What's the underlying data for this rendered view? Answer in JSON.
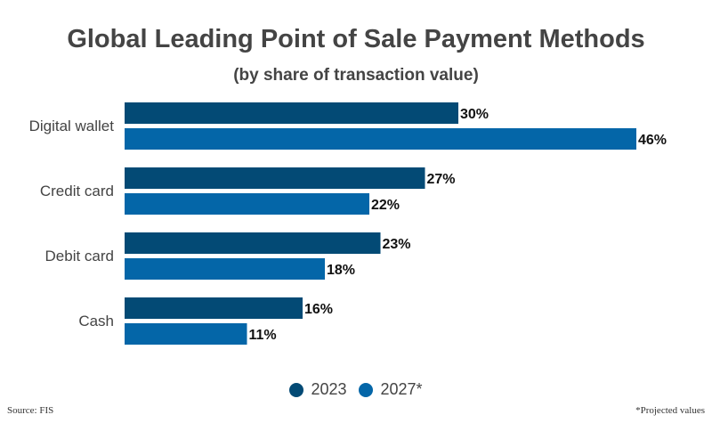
{
  "chart_data": {
    "type": "bar",
    "orientation": "horizontal",
    "title": "Global Leading Point of Sale Payment Methods",
    "subtitle": "(by share of transaction value)",
    "categories": [
      "Digital wallet",
      "Credit card",
      "Debit card",
      "Cash"
    ],
    "series": [
      {
        "name": "2023",
        "values": [
          30,
          27,
          23,
          16
        ],
        "color": "#034a75"
      },
      {
        "name": "2027*",
        "values": [
          46,
          22,
          18,
          11
        ],
        "color": "#0466a8"
      }
    ],
    "value_suffix": "%",
    "xlim": [
      0,
      50
    ],
    "grid": false,
    "legend_position": "bottom"
  },
  "footer": {
    "source": "Source: FIS",
    "note": "*Projected values"
  }
}
